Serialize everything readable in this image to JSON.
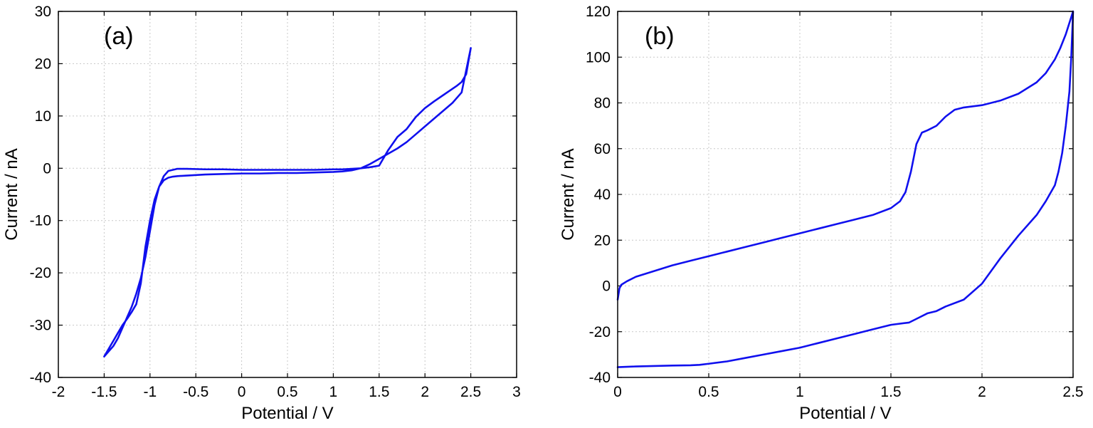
{
  "chart_data": [
    {
      "type": "line",
      "panel_label": "(a)",
      "xlabel": "Potential / V",
      "ylabel": "Current / nA",
      "xlim": [
        -2,
        3
      ],
      "ylim": [
        -40,
        30
      ],
      "xticks": [
        -2,
        -1.5,
        -1,
        -0.5,
        0,
        0.5,
        1,
        1.5,
        2,
        2.5,
        3
      ],
      "xtick_labels": [
        "-2",
        "-1.5",
        "-1",
        "-0.5",
        "0",
        "0.5",
        "1",
        "1.5",
        "2",
        "2.5",
        "3"
      ],
      "yticks": [
        -40,
        -30,
        -20,
        -10,
        0,
        10,
        20,
        30
      ],
      "ytick_labels": [
        "-40",
        "-30",
        "-20",
        "-10",
        "0",
        "10",
        "20",
        "30"
      ],
      "grid": true,
      "line_color": "#1010ee",
      "series": [
        {
          "x": [
            -1.5,
            -1.45,
            -1.4,
            -1.35,
            -1.3,
            -1.25,
            -1.2,
            -1.15,
            -1.1,
            -1.05,
            -1.0,
            -0.95,
            -0.9,
            -0.85,
            -0.8,
            -0.75,
            -0.7,
            -0.6,
            -0.5,
            -0.4,
            -0.2,
            0.0,
            0.2,
            0.4,
            0.6,
            0.8,
            1.0,
            1.1,
            1.2,
            1.3,
            1.4,
            1.5,
            1.6,
            1.7,
            1.8,
            1.9,
            2.0,
            2.1,
            2.2,
            2.3,
            2.4,
            2.5,
            2.45,
            2.4,
            2.35,
            2.3,
            2.2,
            2.1,
            2.0,
            1.9,
            1.8,
            1.7,
            1.6,
            1.5,
            1.4,
            1.3,
            1.2,
            1.1,
            1.0,
            0.8,
            0.6,
            0.4,
            0.2,
            0.0,
            -0.2,
            -0.4,
            -0.6,
            -0.7,
            -0.8,
            -0.85,
            -0.9,
            -0.95,
            -1.0,
            -1.05,
            -1.1,
            -1.15,
            -1.2,
            -1.25,
            -1.3,
            -1.35,
            -1.4,
            -1.45,
            -1.5
          ],
          "y": [
            -36,
            -34.5,
            -33,
            -31.5,
            -30,
            -28.8,
            -27.5,
            -26,
            -22,
            -15,
            -10,
            -6,
            -3.5,
            -2.3,
            -1.8,
            -1.6,
            -1.5,
            -1.4,
            -1.3,
            -1.2,
            -1.1,
            -1.0,
            -1.0,
            -0.9,
            -0.9,
            -0.8,
            -0.7,
            -0.6,
            -0.4,
            0.0,
            0.8,
            1.8,
            2.8,
            3.8,
            5.0,
            6.5,
            8.0,
            9.5,
            11.0,
            12.5,
            14.5,
            23,
            18,
            16.5,
            15.8,
            15.2,
            14.0,
            12.8,
            11.5,
            9.8,
            7.5,
            6.0,
            3.5,
            0.5,
            0.2,
            0.0,
            -0.1,
            -0.2,
            -0.2,
            -0.3,
            -0.3,
            -0.3,
            -0.3,
            -0.3,
            -0.2,
            -0.2,
            -0.1,
            -0.1,
            -0.5,
            -1.5,
            -3.5,
            -7.0,
            -12.0,
            -17.0,
            -21.0,
            -24.0,
            -26.5,
            -28.5,
            -30.5,
            -32.5,
            -34.0,
            -35.0,
            -36.0
          ]
        }
      ]
    },
    {
      "type": "line",
      "panel_label": "(b)",
      "xlabel": "Potential / V",
      "ylabel": "Current / nA",
      "xlim": [
        0,
        2.5
      ],
      "ylim": [
        -40,
        120
      ],
      "xticks": [
        0,
        0.5,
        1,
        1.5,
        2,
        2.5
      ],
      "xtick_labels": [
        "0",
        "0.5",
        "1",
        "1.5",
        "2",
        "2.5"
      ],
      "yticks": [
        -40,
        -20,
        0,
        20,
        40,
        60,
        80,
        100,
        120
      ],
      "ytick_labels": [
        "-40",
        "-20",
        "0",
        "20",
        "40",
        "60",
        "80",
        "100",
        "120"
      ],
      "grid": true,
      "line_color": "#1010ee",
      "series": [
        {
          "x": [
            0.0,
            0.01,
            0.02,
            0.05,
            0.1,
            0.2,
            0.3,
            0.4,
            0.5,
            0.6,
            0.7,
            0.8,
            0.9,
            1.0,
            1.1,
            1.2,
            1.3,
            1.4,
            1.5,
            1.55,
            1.58,
            1.61,
            1.64,
            1.67,
            1.7,
            1.75,
            1.8,
            1.85,
            1.9,
            2.0,
            2.1,
            2.2,
            2.3,
            2.35,
            2.4,
            2.43,
            2.46,
            2.48,
            2.5,
            2.49,
            2.48,
            2.46,
            2.44,
            2.42,
            2.4,
            2.35,
            2.3,
            2.2,
            2.1,
            2.0,
            1.9,
            1.8,
            1.75,
            1.7,
            1.65,
            1.6,
            1.5,
            1.4,
            1.3,
            1.2,
            1.1,
            1.0,
            0.9,
            0.8,
            0.7,
            0.6,
            0.5,
            0.45,
            0.4,
            0.3,
            0.2,
            0.1,
            0.0
          ],
          "y": [
            -6,
            -1,
            0.5,
            2,
            4,
            6.5,
            9,
            11,
            13,
            15,
            17,
            19,
            21,
            23,
            25,
            27,
            29,
            31,
            34,
            37,
            41,
            50,
            62,
            67,
            68,
            70,
            74,
            77,
            78,
            79,
            81,
            84,
            89,
            93,
            99,
            104,
            110,
            115,
            120,
            100,
            85,
            70,
            58,
            50,
            44,
            37,
            31,
            22,
            12,
            1,
            -6,
            -9,
            -11,
            -12,
            -14,
            -16,
            -17,
            -19,
            -21,
            -23,
            -25,
            -27,
            -28.5,
            -30,
            -31.5,
            -33,
            -34,
            -34.5,
            -34.7,
            -34.8,
            -35,
            -35.2,
            -35.5
          ]
        }
      ]
    }
  ]
}
